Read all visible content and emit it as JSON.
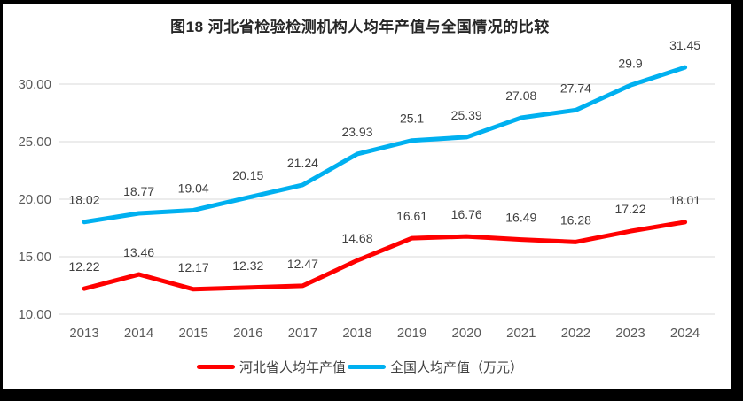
{
  "title": "图18 河北省检验检测机构人均年产值与全国情况的比较",
  "colors": {
    "hebei": "#ff0000",
    "national": "#00b0f0",
    "gridline": "#d9d9d9",
    "axis_text": "#595959",
    "data_label_text": "#404040",
    "title_text": "#262626",
    "frame": "#000000"
  },
  "chart_data": {
    "type": "line",
    "title": "图18 河北省检验检测机构人均年产值与全国情况的比较",
    "categories": [
      "2013",
      "2014",
      "2015",
      "2016",
      "2017",
      "2018",
      "2019",
      "2020",
      "2021",
      "2022",
      "2023",
      "2024"
    ],
    "series": [
      {
        "name": "河北省人均年产值",
        "color_key": "hebei",
        "values": [
          12.22,
          13.46,
          12.17,
          12.32,
          12.47,
          14.68,
          16.61,
          16.76,
          16.49,
          16.28,
          17.22,
          18.01
        ],
        "labels": [
          "12.22",
          "13.46",
          "12.17",
          "12.32",
          "12.47",
          "14.68",
          "16.61",
          "16.76",
          "16.49",
          "16.28",
          "17.22",
          "18.01"
        ]
      },
      {
        "name": "全国人均产值（万元）",
        "color_key": "national",
        "values": [
          18.02,
          18.77,
          19.04,
          20.15,
          21.24,
          23.93,
          25.1,
          25.39,
          27.08,
          27.74,
          29.9,
          31.45
        ],
        "labels": [
          "18.02",
          "18.77",
          "19.04",
          "20.15",
          "21.24",
          "23.93",
          "25.1",
          "25.39",
          "27.08",
          "27.74",
          "29.9",
          "31.45"
        ]
      }
    ],
    "yticks": [
      {
        "value": 10,
        "label": "10.00"
      },
      {
        "value": 15,
        "label": "15.00"
      },
      {
        "value": 20,
        "label": "20.00"
      },
      {
        "value": 25,
        "label": "25.00"
      },
      {
        "value": 30,
        "label": "30.00"
      }
    ],
    "ylim": [
      10,
      32.5
    ],
    "xlabel": "",
    "ylabel": "",
    "grid": "horizontal",
    "data_labels": "above",
    "legend_position": "bottom"
  },
  "legend": {
    "items": [
      {
        "label": "河北省人均年产值",
        "color_key": "hebei"
      },
      {
        "label": "全国人均产值（万元）",
        "color_key": "national"
      }
    ]
  }
}
